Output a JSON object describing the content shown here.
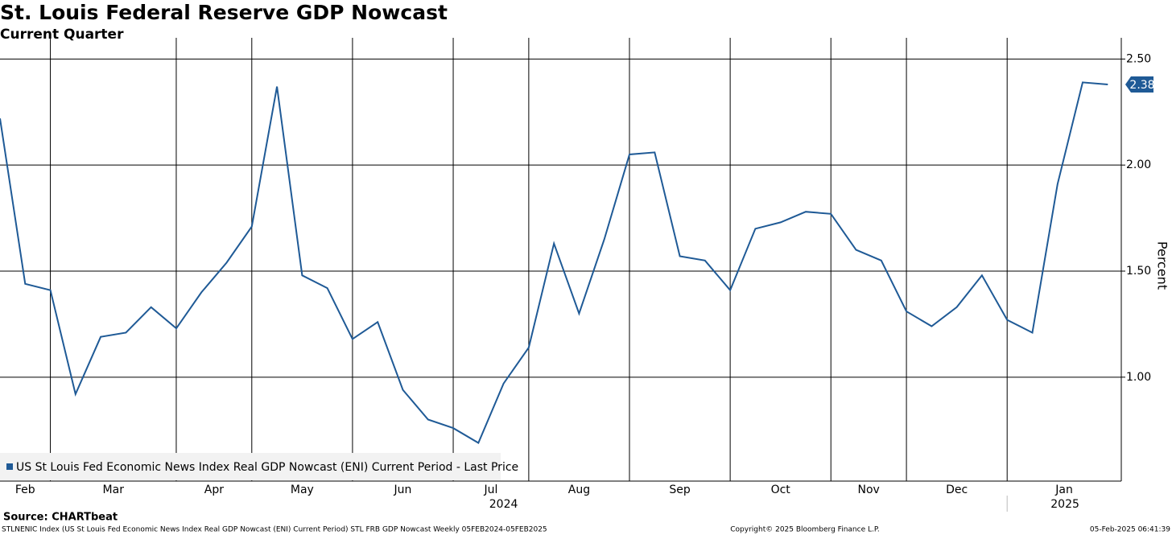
{
  "chart_data": {
    "type": "line",
    "title": "St. Louis Federal Reserve GDP Nowcast",
    "subtitle": "Current Quarter",
    "y_label": "Percent",
    "categories": [
      "Feb",
      null,
      "Mar",
      null,
      null,
      null,
      null,
      "Apr",
      null,
      null,
      "May",
      null,
      null,
      null,
      "Jun",
      null,
      null,
      null,
      "Jul",
      null,
      null,
      "Aug",
      null,
      null,
      null,
      "Sep",
      null,
      null,
      null,
      "Oct",
      null,
      null,
      null,
      "Nov",
      null,
      null,
      "Dec",
      null,
      null,
      null,
      "Jan",
      null,
      null,
      null,
      null
    ],
    "years": [
      "2024",
      "2025"
    ],
    "series": [
      {
        "name": "US St Louis Fed Economic News Index Real GDP Nowcast (ENI) Current Period - Last Price",
        "color": "#1f5a96",
        "values": [
          2.22,
          1.44,
          1.41,
          0.92,
          1.19,
          1.21,
          1.33,
          1.23,
          1.4,
          1.54,
          1.71,
          2.37,
          1.48,
          1.42,
          1.18,
          1.26,
          0.94,
          0.8,
          0.76,
          0.69,
          0.97,
          1.14,
          1.63,
          1.3,
          1.65,
          2.05,
          2.06,
          1.57,
          1.55,
          1.41,
          1.7,
          1.73,
          1.78,
          1.77,
          1.6,
          1.55,
          1.31,
          1.24,
          1.33,
          1.48,
          1.27,
          1.21,
          1.91,
          2.39,
          2.38
        ]
      }
    ],
    "ylim": [
      0.51,
      2.6
    ],
    "yticks": [
      {
        "value": 1,
        "label": "1.00"
      },
      {
        "value": 1.5,
        "label": "1.50"
      },
      {
        "value": 2,
        "label": "2.00"
      },
      {
        "value": 2.5,
        "label": "2.50"
      }
    ],
    "grid": true,
    "legend": "bottom-left",
    "source": "Source: CHARTbeat",
    "footer_left": "STLNENIC Index (US St Louis Fed Economic News Index Real GDP Nowcast (ENI) Current Period) STL FRB GDP Nowcast  Weekly 05FEB2024-05FEB2025",
    "footer_center": "Copyright© 2025 Bloomberg Finance L.P.",
    "footer_right": "05-Feb-2025 06:41:39"
  }
}
